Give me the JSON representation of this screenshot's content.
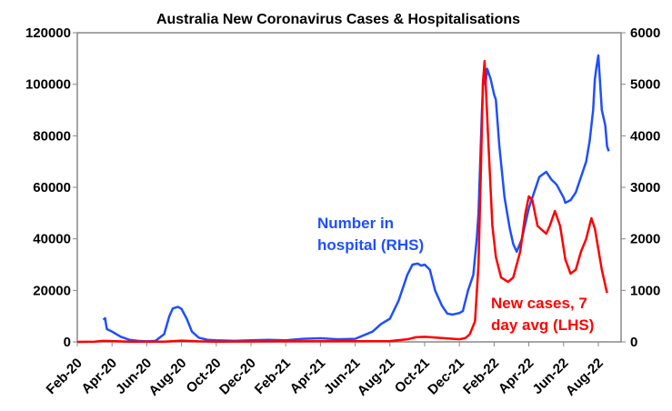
{
  "chart_data": {
    "type": "line",
    "title": "Australia New Coronavirus Cases & Hospitalisations",
    "x_unit": "months since Feb-20",
    "x_ticks": [
      "Feb-20",
      "Apr-20",
      "Jun-20",
      "Aug-20",
      "Oct-20",
      "Dec-20",
      "Feb-21",
      "Apr-21",
      "Jun-21",
      "Aug-21",
      "Oct-21",
      "Dec-21",
      "Feb-22",
      "Apr-22",
      "Jun-22",
      "Aug-22"
    ],
    "y_left": {
      "ticks": [
        "0",
        "20000",
        "40000",
        "60000",
        "80000",
        "100000",
        "120000"
      ],
      "range": [
        0,
        120000
      ]
    },
    "y_right": {
      "ticks": [
        "0",
        "1000",
        "2000",
        "3000",
        "4000",
        "5000",
        "6000"
      ],
      "range": [
        0,
        6000
      ]
    },
    "grid": false,
    "series": [
      {
        "name": "Number in hospital (RHS)",
        "axis": "right",
        "color": "#1f4fff",
        "x": [
          1.5,
          1.6,
          1.7,
          2,
          2.5,
          3,
          3.5,
          4,
          4.5,
          5,
          5.3,
          5.5,
          5.8,
          6,
          6.3,
          6.6,
          7,
          7.5,
          8,
          9,
          10,
          11,
          12,
          13,
          14,
          15,
          16,
          17,
          17.5,
          18,
          18.5,
          19,
          19.3,
          19.6,
          19.8,
          20,
          20.3,
          20.6,
          21,
          21.3,
          21.6,
          22,
          22.2,
          22.5,
          22.8,
          23,
          23.1,
          23.2,
          23.3,
          23.4,
          23.5,
          23.6,
          23.8,
          24,
          24.1,
          24.3,
          24.6,
          24.9,
          25.1,
          25.3,
          25.6,
          26,
          26.3,
          26.6,
          27,
          27.3,
          27.6,
          28,
          28.1,
          28.4,
          28.7,
          29,
          29.3,
          29.5,
          29.7,
          29.8,
          29.9,
          30,
          30.2,
          30.4,
          30.5,
          30.6
        ],
        "y": [
          430,
          460,
          250,
          200,
          100,
          40,
          20,
          10,
          20,
          150,
          500,
          650,
          680,
          640,
          450,
          200,
          80,
          40,
          30,
          20,
          30,
          40,
          30,
          60,
          70,
          50,
          60,
          200,
          350,
          450,
          800,
          1300,
          1500,
          1520,
          1480,
          1500,
          1400,
          1000,
          700,
          550,
          530,
          560,
          600,
          1000,
          1300,
          2000,
          2500,
          3500,
          4500,
          5200,
          5000,
          5300,
          5100,
          4800,
          4700,
          3800,
          2800,
          2200,
          1900,
          1750,
          2000,
          2600,
          2900,
          3200,
          3300,
          3150,
          3050,
          2800,
          2700,
          2750,
          2900,
          3200,
          3500,
          3900,
          4500,
          5100,
          5350,
          5560,
          4500,
          4200,
          3800,
          3700
        ]
      },
      {
        "name": "New cases, 7 day avg (LHS)",
        "axis": "left",
        "color": "#ff0000",
        "x": [
          0,
          1,
          1.5,
          2,
          3,
          5,
          6,
          7,
          8,
          12,
          18,
          19,
          19.5,
          20,
          21,
          22,
          22.35,
          22.6,
          22.9,
          23.1,
          23.25,
          23.35,
          23.45,
          23.55,
          23.65,
          23.9,
          24.1,
          24.4,
          24.8,
          25.1,
          25.5,
          25.8,
          26.0,
          26.2,
          26.5,
          27.0,
          27.2,
          27.5,
          27.8,
          28.1,
          28.4,
          28.7,
          29.0,
          29.3,
          29.6,
          29.8,
          30.0,
          30.2,
          30.5
        ],
        "y": [
          0,
          100,
          400,
          300,
          100,
          100,
          500,
          200,
          100,
          200,
          300,
          1000,
          1800,
          2000,
          1500,
          1000,
          1500,
          3000,
          8000,
          30000,
          70000,
          100000,
          109000,
          95000,
          80000,
          45000,
          33000,
          25000,
          23300,
          25000,
          35000,
          50000,
          56500,
          55000,
          45000,
          42000,
          45000,
          50800,
          45000,
          32000,
          26500,
          28000,
          35000,
          40000,
          48000,
          44000,
          36000,
          28000,
          19000
        ]
      }
    ],
    "annotations": {
      "hospital": [
        "Number in",
        "hospital (RHS)"
      ],
      "cases": [
        "New cases, 7",
        "day avg (LHS)"
      ]
    }
  }
}
